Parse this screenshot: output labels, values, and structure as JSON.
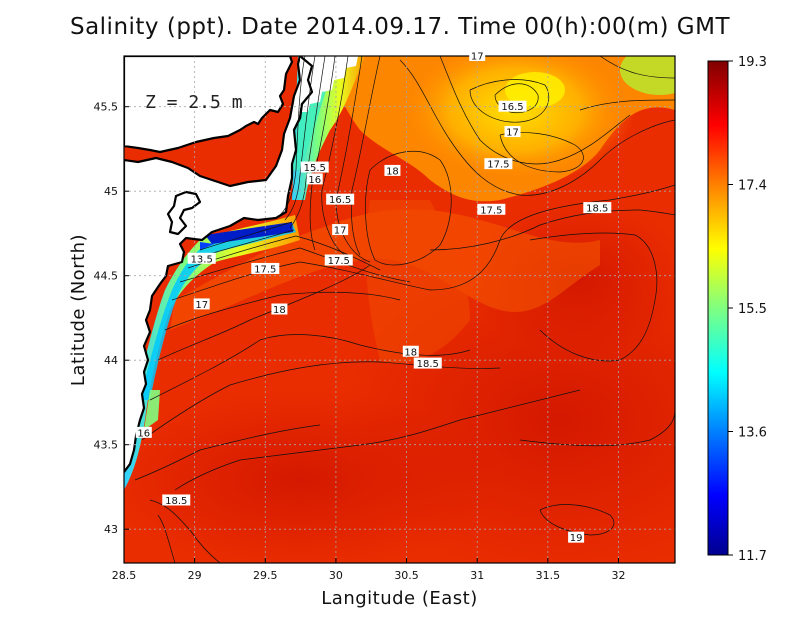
{
  "chart_data": {
    "type": "heatmap",
    "title": "Salinity (ppt). Date 2014.09.17. Time 00(h):00(m) GMT",
    "xlabel": "Langitude (East)",
    "ylabel": "Latitude (North)",
    "xlim": [
      28.5,
      32.4
    ],
    "ylim": [
      42.8,
      45.8
    ],
    "x_ticks": [
      "28.5",
      "29",
      "29.5",
      "30",
      "30.5",
      "31",
      "31.5",
      "32"
    ],
    "x_tick_values": [
      28.5,
      29,
      29.5,
      30,
      30.5,
      31,
      31.5,
      32
    ],
    "y_ticks": [
      "43",
      "43.5",
      "44",
      "44.5",
      "45",
      "45.5"
    ],
    "y_tick_values": [
      43,
      43.5,
      44,
      44.5,
      45,
      45.5
    ],
    "grid": true,
    "annotation": "Z = 2.5 m",
    "colorbar": {
      "min": 11.7,
      "max": 19.3,
      "ticks": [
        "19.3",
        "17.4",
        "15.5",
        "13.6",
        "11.7"
      ],
      "tick_values": [
        19.3,
        17.4,
        15.5,
        13.6,
        11.7
      ],
      "colormap": [
        "#00008f",
        "#0000ff",
        "#0080ff",
        "#00ffff",
        "#80ff80",
        "#ffff00",
        "#ff8000",
        "#ff0000",
        "#800000"
      ]
    },
    "contour_labels": [
      {
        "text": "17",
        "lon": 31.0,
        "lat": 45.8
      },
      {
        "text": "16.5",
        "lon": 31.25,
        "lat": 45.5
      },
      {
        "text": "17",
        "lon": 31.25,
        "lat": 45.35
      },
      {
        "text": "17.5",
        "lon": 31.15,
        "lat": 45.16
      },
      {
        "text": "15.5",
        "lon": 29.85,
        "lat": 45.14
      },
      {
        "text": "16",
        "lon": 29.85,
        "lat": 45.07
      },
      {
        "text": "18",
        "lon": 30.4,
        "lat": 45.12
      },
      {
        "text": "16.5",
        "lon": 30.03,
        "lat": 44.95
      },
      {
        "text": "17",
        "lon": 30.03,
        "lat": 44.77
      },
      {
        "text": "17.5",
        "lon": 31.1,
        "lat": 44.89
      },
      {
        "text": "18.5",
        "lon": 31.85,
        "lat": 44.9
      },
      {
        "text": "13.5",
        "lon": 29.05,
        "lat": 44.6
      },
      {
        "text": "17.5",
        "lon": 29.5,
        "lat": 44.54
      },
      {
        "text": "17.5",
        "lon": 30.02,
        "lat": 44.59
      },
      {
        "text": "17",
        "lon": 29.05,
        "lat": 44.33
      },
      {
        "text": "18",
        "lon": 29.6,
        "lat": 44.3
      },
      {
        "text": "18",
        "lon": 30.53,
        "lat": 44.05
      },
      {
        "text": "18.5",
        "lon": 30.65,
        "lat": 43.98
      },
      {
        "text": "16",
        "lon": 28.64,
        "lat": 43.57
      },
      {
        "text": "18.5",
        "lon": 28.87,
        "lat": 43.17
      },
      {
        "text": "19",
        "lon": 31.7,
        "lat": 42.95
      }
    ]
  }
}
